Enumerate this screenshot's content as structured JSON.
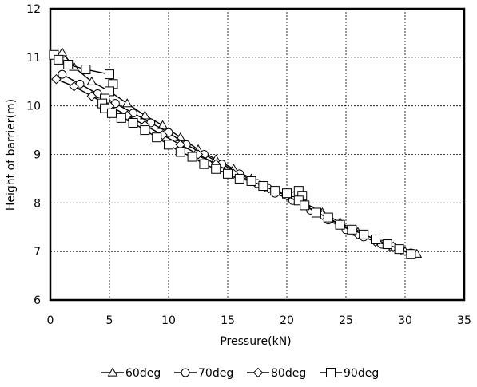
{
  "chart_data": {
    "type": "line",
    "xlabel": "Pressure(kN)",
    "ylabel": "Height of barrier(m)",
    "xlim": [
      0,
      35
    ],
    "ylim": [
      6,
      12
    ],
    "xticks": [
      0,
      5,
      10,
      15,
      20,
      25,
      30,
      35
    ],
    "yticks": [
      6,
      7,
      8,
      9,
      10,
      11,
      12
    ],
    "grid": true,
    "legend_position": "bottom",
    "series": [
      {
        "name": "60deg",
        "marker": "triangle",
        "x": [
          1.0,
          2.0,
          3.5,
          5.0,
          6.5,
          8.0,
          9.5,
          11.0,
          12.5,
          14.0,
          15.5,
          17.0,
          18.5,
          20.0,
          21.5,
          23.0,
          24.5,
          26.0,
          27.5,
          29.0,
          30.0,
          31.0
        ],
        "y": [
          11.1,
          10.8,
          10.5,
          10.3,
          10.05,
          9.8,
          9.6,
          9.35,
          9.1,
          8.9,
          8.7,
          8.5,
          8.3,
          8.15,
          8.0,
          7.8,
          7.6,
          7.4,
          7.25,
          7.1,
          7.0,
          6.95
        ]
      },
      {
        "name": "70deg",
        "marker": "circle",
        "x": [
          1.0,
          2.5,
          4.0,
          5.5,
          7.0,
          8.5,
          10.0,
          11.5,
          13.0,
          14.5,
          16.0,
          17.5,
          19.0,
          20.5,
          22.0,
          23.5,
          25.0,
          26.5,
          28.0,
          29.5,
          30.5
        ],
        "y": [
          10.65,
          10.45,
          10.25,
          10.05,
          9.85,
          9.65,
          9.45,
          9.2,
          9.0,
          8.8,
          8.6,
          8.4,
          8.2,
          8.05,
          7.85,
          7.65,
          7.45,
          7.3,
          7.15,
          7.05,
          6.97
        ]
      },
      {
        "name": "80deg",
        "marker": "diamond",
        "x": [
          0.5,
          2.0,
          3.5,
          5.0,
          6.5,
          8.0,
          9.5,
          11.0,
          12.5,
          14.0,
          15.5,
          17.0,
          18.5,
          20.0,
          21.5,
          23.0,
          24.5,
          26.0,
          27.5,
          29.0,
          30.5
        ],
        "y": [
          10.55,
          10.4,
          10.2,
          10.0,
          9.8,
          9.6,
          9.4,
          9.2,
          9.0,
          8.8,
          8.6,
          8.45,
          8.3,
          8.15,
          7.95,
          7.75,
          7.55,
          7.35,
          7.2,
          7.1,
          6.95
        ]
      },
      {
        "name": "90deg",
        "marker": "square",
        "x": [
          0.3,
          0.7,
          1.5,
          3.0,
          5.0,
          5.3,
          5.0,
          4.6,
          4.4,
          4.6,
          5.2,
          6.0,
          7.0,
          8.0,
          9.0,
          10.0,
          11.0,
          12.0,
          13.0,
          14.0,
          15.0,
          16.0,
          17.0,
          18.0,
          19.0,
          20.0,
          21.0,
          21.3,
          21.0,
          21.5,
          22.5,
          23.5,
          24.5,
          25.5,
          26.5,
          27.5,
          28.5,
          29.5,
          30.5
        ],
        "y": [
          11.05,
          10.95,
          10.85,
          10.75,
          10.65,
          10.45,
          10.3,
          10.15,
          10.05,
          9.95,
          9.85,
          9.75,
          9.65,
          9.5,
          9.35,
          9.2,
          9.05,
          8.95,
          8.8,
          8.7,
          8.6,
          8.5,
          8.45,
          8.35,
          8.25,
          8.2,
          8.25,
          8.15,
          8.05,
          7.95,
          7.8,
          7.7,
          7.55,
          7.45,
          7.35,
          7.25,
          7.15,
          7.05,
          6.95
        ]
      }
    ]
  }
}
